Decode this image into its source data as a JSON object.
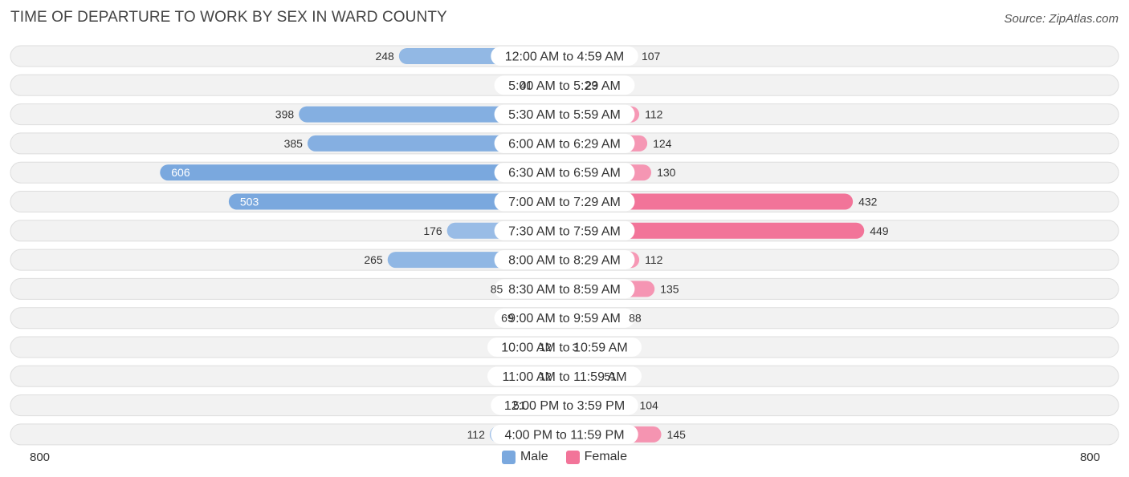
{
  "title": "TIME OF DEPARTURE TO WORK BY SEX IN WARD COUNTY",
  "source": "Source: ZipAtlas.com",
  "colors": {
    "male": "#7aa8de",
    "male_light": "#a9c7ea",
    "female": "#f27499",
    "female_light": "#f7a8c1",
    "row_bg": "#f2f2f2",
    "row_border": "#dddddd"
  },
  "chart_data": {
    "type": "bar",
    "orientation": "horizontal-diverging",
    "categories": [
      "12:00 AM to 4:59 AM",
      "5:00 AM to 5:29 AM",
      "5:30 AM to 5:59 AM",
      "6:00 AM to 6:29 AM",
      "6:30 AM to 6:59 AM",
      "7:00 AM to 7:29 AM",
      "7:30 AM to 7:59 AM",
      "8:00 AM to 8:29 AM",
      "8:30 AM to 8:59 AM",
      "9:00 AM to 9:59 AM",
      "10:00 AM to 10:59 AM",
      "11:00 AM to 11:59 AM",
      "12:00 PM to 3:59 PM",
      "4:00 PM to 11:59 PM"
    ],
    "series": [
      {
        "name": "Male",
        "values": [
          248,
          41,
          398,
          385,
          606,
          503,
          176,
          265,
          85,
          69,
          12,
          12,
          51,
          112
        ]
      },
      {
        "name": "Female",
        "values": [
          107,
          23,
          112,
          124,
          130,
          432,
          449,
          112,
          135,
          88,
          3,
          51,
          104,
          145
        ]
      }
    ],
    "xlim": [
      -800,
      800
    ],
    "axis_left_label": "800",
    "axis_right_label": "800",
    "legend_position": "bottom-center"
  }
}
